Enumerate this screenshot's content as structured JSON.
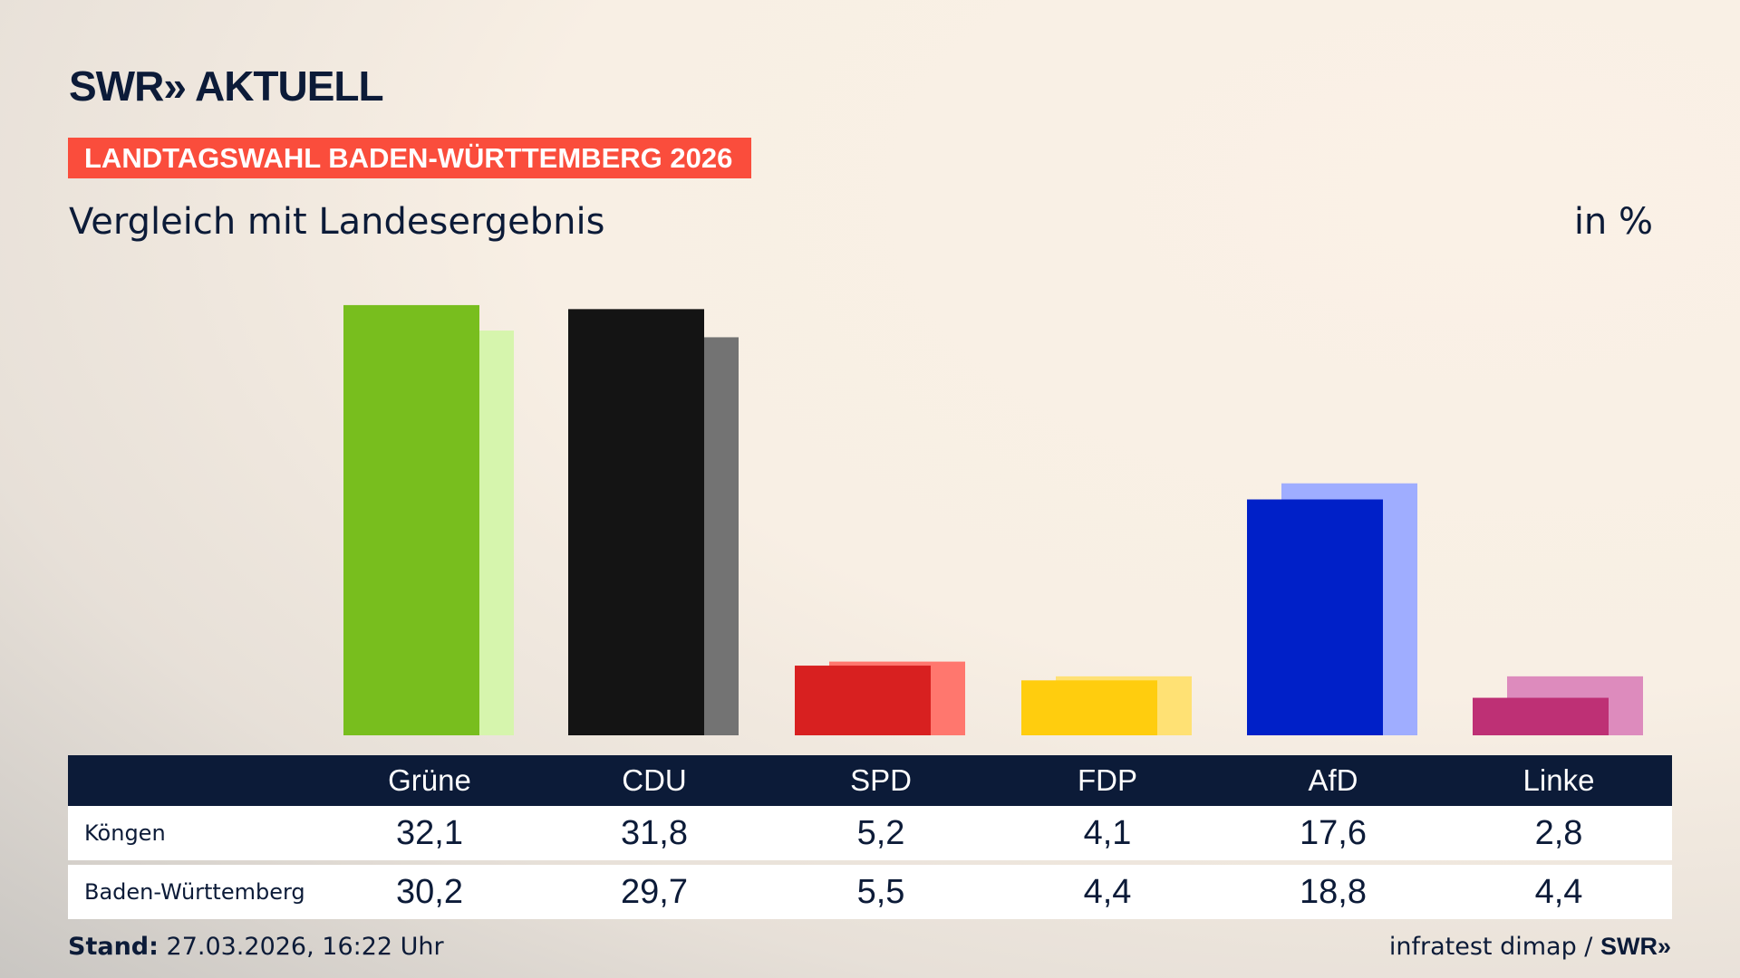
{
  "header": {
    "logo": "SWR» AKTUELL",
    "badge": "LANDTAGSWAHL BADEN-WÜRTTEMBERG 2026",
    "subtitle": "Vergleich mit Landesergebnis",
    "unit": "in %"
  },
  "chart_data": {
    "type": "bar",
    "title": "Vergleich mit Landesergebnis",
    "ylabel": "in %",
    "ylim": [
      0,
      32.1
    ],
    "categories": [
      "Grüne",
      "CDU",
      "SPD",
      "FDP",
      "AfD",
      "Linke"
    ],
    "series": [
      {
        "name": "Köngen",
        "values": [
          32.1,
          31.8,
          5.2,
          4.1,
          17.6,
          2.8
        ],
        "colors": [
          "#78be1e",
          "#141414",
          "#d82020",
          "#ffcd0e",
          "#0020c8",
          "#be3075"
        ]
      },
      {
        "name": "Baden-Württemberg",
        "values": [
          30.2,
          29.7,
          5.5,
          4.4,
          18.8,
          4.4
        ],
        "colors": [
          "#d6f5ad",
          "#737373",
          "#ff776e",
          "#ffe174",
          "#9fadff",
          "#dd8bbd"
        ]
      }
    ]
  },
  "table": {
    "rows": [
      {
        "label": "Köngen",
        "values": [
          "32,1",
          "31,8",
          "5,2",
          "4,1",
          "17,6",
          "2,8"
        ]
      },
      {
        "label": "Baden-Württemberg",
        "values": [
          "30,2",
          "29,7",
          "5,5",
          "4,4",
          "18,8",
          "4,4"
        ]
      }
    ]
  },
  "footer": {
    "stand_label": "Stand:",
    "stand": "27.03.2026, 16:22 Uhr",
    "source": "infratest dimap / ",
    "source_logo": "SWR»"
  }
}
